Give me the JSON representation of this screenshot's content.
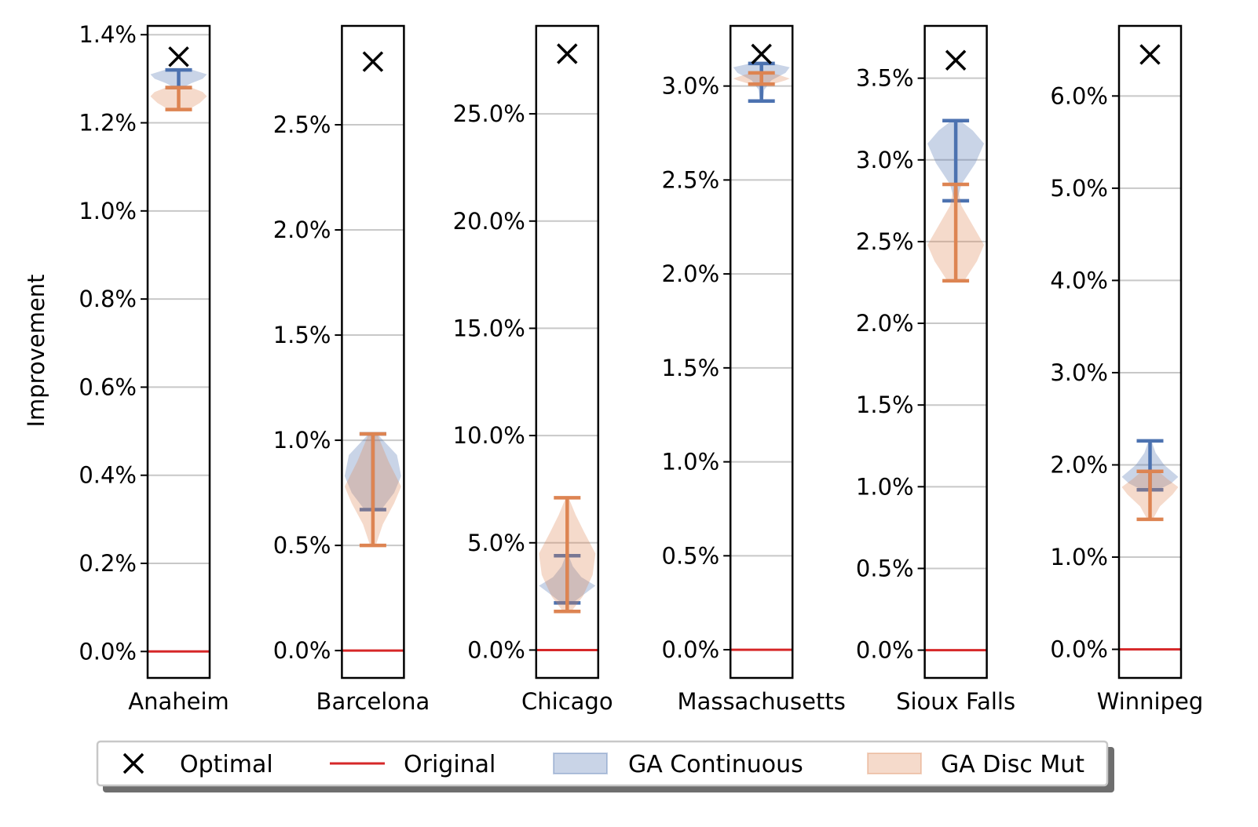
{
  "figure": {
    "ylabel": "Improvement"
  },
  "legend": {
    "placement": "bottom-center",
    "items": [
      {
        "label": "Optimal",
        "kind": "marker-x",
        "color": "#000000"
      },
      {
        "label": "Original",
        "kind": "line",
        "color": "#d62728"
      },
      {
        "label": "GA Continuous",
        "kind": "patch",
        "color": "#4c72b0"
      },
      {
        "label": "GA Disc Mut",
        "kind": "patch",
        "color": "#dd8452"
      }
    ]
  },
  "colors": {
    "ga_continuous": "#4c72b0",
    "ga_disc_mut": "#dd8452",
    "original": "#d62728",
    "optimal": "#000000",
    "grid": "#c8c8c8"
  },
  "chart_data": [
    {
      "type": "violin",
      "category": "Anaheim",
      "ylabel": "Improvement",
      "ylim": [
        -0.0006,
        0.0142
      ],
      "yticks": [
        0.0,
        0.002,
        0.004,
        0.006,
        0.008,
        0.01,
        0.012,
        0.014
      ],
      "ytick_labels": [
        "0.0%",
        "0.2%",
        "0.4%",
        "0.6%",
        "0.8%",
        "1.0%",
        "1.2%",
        "1.4%"
      ],
      "grid": true,
      "optimal": 0.0135,
      "original": 0.0,
      "series": [
        {
          "name": "GA Continuous",
          "min": 0.0128,
          "max": 0.0132,
          "density": [
            [
              0.0128,
              0.15
            ],
            [
              0.0129,
              0.45
            ],
            [
              0.013,
              0.85
            ],
            [
              0.0131,
              1.0
            ],
            [
              0.0132,
              0.5
            ]
          ]
        },
        {
          "name": "GA Disc Mut",
          "min": 0.0123,
          "max": 0.0128,
          "density": [
            [
              0.0123,
              0.35
            ],
            [
              0.01245,
              0.75
            ],
            [
              0.0126,
              1.0
            ],
            [
              0.0127,
              0.85
            ],
            [
              0.0128,
              0.45
            ]
          ]
        }
      ]
    },
    {
      "type": "violin",
      "category": "Barcelona",
      "ylabel": "",
      "ylim": [
        -0.0013,
        0.0297
      ],
      "yticks": [
        0.0,
        0.005,
        0.01,
        0.015,
        0.02,
        0.025
      ],
      "ytick_labels": [
        "0.0%",
        "0.5%",
        "1.0%",
        "1.5%",
        "2.0%",
        "2.5%"
      ],
      "grid": true,
      "optimal": 0.028,
      "original": 0.0,
      "series": [
        {
          "name": "GA Continuous",
          "min": 0.0067,
          "max": 0.0103,
          "density": [
            [
              0.0067,
              0.3
            ],
            [
              0.0075,
              0.75
            ],
            [
              0.0083,
              1.0
            ],
            [
              0.0093,
              0.85
            ],
            [
              0.0103,
              0.15
            ]
          ]
        },
        {
          "name": "GA Disc Mut",
          "min": 0.005,
          "max": 0.0103,
          "density": [
            [
              0.005,
              0.1
            ],
            [
              0.006,
              0.35
            ],
            [
              0.007,
              0.75
            ],
            [
              0.0078,
              1.0
            ],
            [
              0.009,
              0.55
            ],
            [
              0.0103,
              0.15
            ]
          ]
        }
      ]
    },
    {
      "type": "violin",
      "category": "Chicago",
      "ylabel": "",
      "ylim": [
        -0.013,
        0.291
      ],
      "yticks": [
        0.0,
        0.05,
        0.1,
        0.15,
        0.2,
        0.25
      ],
      "ytick_labels": [
        "0.0%",
        "5.0%",
        "10.0%",
        "15.0%",
        "20.0%",
        "25.0%"
      ],
      "grid": true,
      "optimal": 0.278,
      "original": 0.0,
      "series": [
        {
          "name": "GA Continuous",
          "min": 0.022,
          "max": 0.044,
          "density": [
            [
              0.022,
              0.2
            ],
            [
              0.026,
              0.6
            ],
            [
              0.03,
              1.0
            ],
            [
              0.034,
              0.5
            ],
            [
              0.039,
              0.2
            ],
            [
              0.044,
              0.05
            ]
          ]
        },
        {
          "name": "GA Disc Mut",
          "min": 0.018,
          "max": 0.071,
          "density": [
            [
              0.018,
              0.15
            ],
            [
              0.025,
              0.55
            ],
            [
              0.035,
              0.9
            ],
            [
              0.045,
              1.0
            ],
            [
              0.055,
              0.6
            ],
            [
              0.063,
              0.3
            ],
            [
              0.071,
              0.05
            ]
          ]
        }
      ]
    },
    {
      "type": "violin",
      "category": "Massachusetts",
      "ylabel": "",
      "ylim": [
        -0.0015,
        0.0332
      ],
      "yticks": [
        0.0,
        0.005,
        0.01,
        0.015,
        0.02,
        0.025,
        0.03
      ],
      "ytick_labels": [
        "0.0%",
        "0.5%",
        "1.0%",
        "1.5%",
        "2.0%",
        "2.5%",
        "3.0%"
      ],
      "grid": true,
      "optimal": 0.0317,
      "original": 0.0,
      "series": [
        {
          "name": "GA Continuous",
          "min": 0.0292,
          "max": 0.0312,
          "density": [
            [
              0.0292,
              0.05
            ],
            [
              0.0298,
              0.1
            ],
            [
              0.0303,
              0.35
            ],
            [
              0.0307,
              0.85
            ],
            [
              0.031,
              1.0
            ],
            [
              0.0312,
              0.4
            ]
          ]
        },
        {
          "name": "GA Disc Mut",
          "min": 0.0301,
          "max": 0.0307,
          "density": [
            [
              0.0301,
              0.4
            ],
            [
              0.0303,
              0.85
            ],
            [
              0.0304,
              1.0
            ],
            [
              0.0306,
              0.6
            ],
            [
              0.0307,
              0.25
            ]
          ]
        }
      ]
    },
    {
      "type": "violin",
      "category": "Sioux Falls",
      "ylabel": "",
      "ylim": [
        -0.0017,
        0.0382
      ],
      "yticks": [
        0.0,
        0.005,
        0.01,
        0.015,
        0.02,
        0.025,
        0.03,
        0.035
      ],
      "ytick_labels": [
        "0.0%",
        "0.5%",
        "1.0%",
        "1.5%",
        "2.0%",
        "2.5%",
        "3.0%",
        "3.5%"
      ],
      "grid": true,
      "optimal": 0.0361,
      "original": 0.0,
      "series": [
        {
          "name": "GA Continuous",
          "min": 0.0275,
          "max": 0.0324,
          "density": [
            [
              0.0275,
              0.05
            ],
            [
              0.0285,
              0.2
            ],
            [
              0.0298,
              0.7
            ],
            [
              0.031,
              1.0
            ],
            [
              0.0318,
              0.6
            ],
            [
              0.0324,
              0.15
            ]
          ]
        },
        {
          "name": "GA Disc Mut",
          "min": 0.0226,
          "max": 0.0285,
          "density": [
            [
              0.0226,
              0.3
            ],
            [
              0.0238,
              0.75
            ],
            [
              0.0248,
              1.0
            ],
            [
              0.026,
              0.6
            ],
            [
              0.0272,
              0.2
            ],
            [
              0.0285,
              0.05
            ]
          ]
        }
      ]
    },
    {
      "type": "violin",
      "category": "Winnipeg",
      "ylabel": "",
      "ylim": [
        -0.0031,
        0.0676
      ],
      "yticks": [
        0.0,
        0.01,
        0.02,
        0.03,
        0.04,
        0.05,
        0.06
      ],
      "ytick_labels": [
        "0.0%",
        "1.0%",
        "2.0%",
        "3.0%",
        "4.0%",
        "5.0%",
        "6.0%"
      ],
      "grid": true,
      "optimal": 0.0645,
      "original": 0.0,
      "series": [
        {
          "name": "GA Continuous",
          "min": 0.0173,
          "max": 0.0226,
          "density": [
            [
              0.0173,
              0.3
            ],
            [
              0.018,
              0.75
            ],
            [
              0.0187,
              1.0
            ],
            [
              0.02,
              0.5
            ],
            [
              0.0213,
              0.2
            ],
            [
              0.0226,
              0.05
            ]
          ]
        },
        {
          "name": "GA Disc Mut",
          "min": 0.0141,
          "max": 0.0193,
          "density": [
            [
              0.0141,
              0.1
            ],
            [
              0.0155,
              0.35
            ],
            [
              0.0168,
              0.8
            ],
            [
              0.0176,
              1.0
            ],
            [
              0.0185,
              0.6
            ],
            [
              0.0193,
              0.3
            ]
          ]
        }
      ]
    }
  ]
}
